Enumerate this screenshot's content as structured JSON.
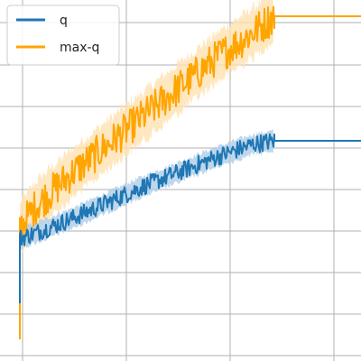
{
  "chart_data": {
    "type": "line",
    "x_range": [
      0,
      1.0
    ],
    "y_range": [
      0,
      1.0
    ],
    "grid": true,
    "legend_position": "top-left",
    "series": [
      {
        "name": "q",
        "color": "#1f77b4",
        "band_color": "#aecde8",
        "start_drop_y": 0.16,
        "points": [
          [
            0.055,
            0.34
          ],
          [
            0.1,
            0.355
          ],
          [
            0.2,
            0.395
          ],
          [
            0.3,
            0.44
          ],
          [
            0.4,
            0.485
          ],
          [
            0.5,
            0.525
          ],
          [
            0.6,
            0.565
          ],
          [
            0.7,
            0.6
          ],
          [
            0.76,
            0.61
          ],
          [
            1.0,
            0.61
          ]
        ],
        "band_halfwidth": 0.035,
        "noise": 0.025
      },
      {
        "name": "max-q",
        "color": "#ffa500",
        "band_color": "#ffe1b0",
        "start_drop_y": 0.06,
        "points": [
          [
            0.055,
            0.37
          ],
          [
            0.1,
            0.43
          ],
          [
            0.2,
            0.52
          ],
          [
            0.3,
            0.6
          ],
          [
            0.4,
            0.68
          ],
          [
            0.5,
            0.76
          ],
          [
            0.6,
            0.84
          ],
          [
            0.7,
            0.91
          ],
          [
            0.76,
            0.955
          ],
          [
            1.0,
            0.955
          ]
        ],
        "band_halfwidth": 0.085,
        "noise": 0.05
      }
    ]
  }
}
